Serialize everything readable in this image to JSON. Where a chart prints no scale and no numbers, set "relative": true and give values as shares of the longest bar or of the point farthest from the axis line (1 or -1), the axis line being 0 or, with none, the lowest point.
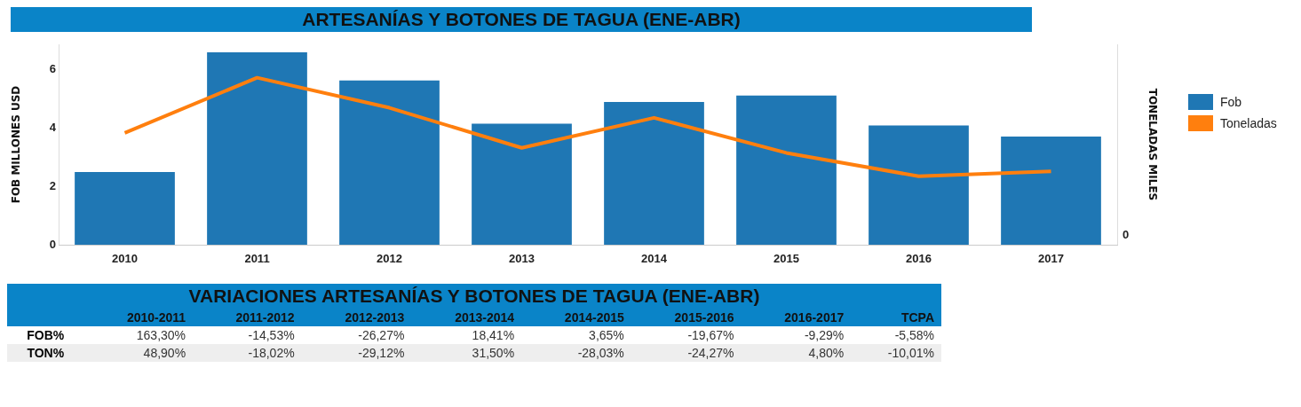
{
  "chart_data": [
    {
      "type": "bar",
      "title": "ARTESANÍAS Y BOTONES DE TAGUA (ENE-ABR)",
      "categories": [
        "2010",
        "2011",
        "2012",
        "2013",
        "2014",
        "2015",
        "2016",
        "2017"
      ],
      "ylabel": "FOB MILLONES USD",
      "ylim": [
        0,
        6.86
      ],
      "yticks": [
        0,
        2,
        4,
        6
      ],
      "legend": "right",
      "grid": false,
      "series": [
        {
          "name": "Fob",
          "color": "#1f77b4",
          "values": [
            2.49,
            6.59,
            5.62,
            4.14,
            4.89,
            5.11,
            4.08,
            3.7
          ]
        }
      ]
    },
    {
      "type": "line",
      "relative": true,
      "categories": [
        null,
        null,
        null,
        null,
        null,
        null,
        null,
        null
      ],
      "y2label": "TONELADAS MILES",
      "annotations": [
        "0"
      ],
      "legend": "right",
      "marker": "none",
      "series": [
        {
          "name": "Toneladas",
          "color": "#ff7f0e",
          "values": [
            0.67,
            1,
            0.82,
            0.58,
            0.76,
            0.55,
            0.41,
            0.44
          ]
        }
      ]
    },
    {
      "type": "other",
      "title": "VARIACIONES ARTESANÍAS Y BOTONES DE TAGUA (ENE-ABR)",
      "categories": [
        "2010-2011",
        "2011-2012",
        "2012-2013",
        "2013-2014",
        "2014-2015",
        "2015-2016",
        "2016-2017",
        "TCPA"
      ],
      "series": [
        {
          "name": "FOB%",
          "values": [
            163.3,
            -14.53,
            -26.27,
            18.41,
            3.65,
            -19.67,
            -9.29,
            -5.58
          ],
          "value_labels": [
            "163,30%",
            "-14,53%",
            "-26,27%",
            "18,41%",
            "3,65%",
            "-19,67%",
            "-9,29%",
            "-5,58%"
          ]
        },
        {
          "name": "TON%",
          "values": [
            48.9,
            -18.02,
            -29.12,
            31.5,
            -28.03,
            -24.27,
            4.8,
            -10.01
          ],
          "value_labels": [
            "48,90%",
            "-18,02%",
            "-29,12%",
            "31,50%",
            "-28,03%",
            "-24,27%",
            "4,80%",
            "-10,01%"
          ]
        }
      ]
    }
  ]
}
